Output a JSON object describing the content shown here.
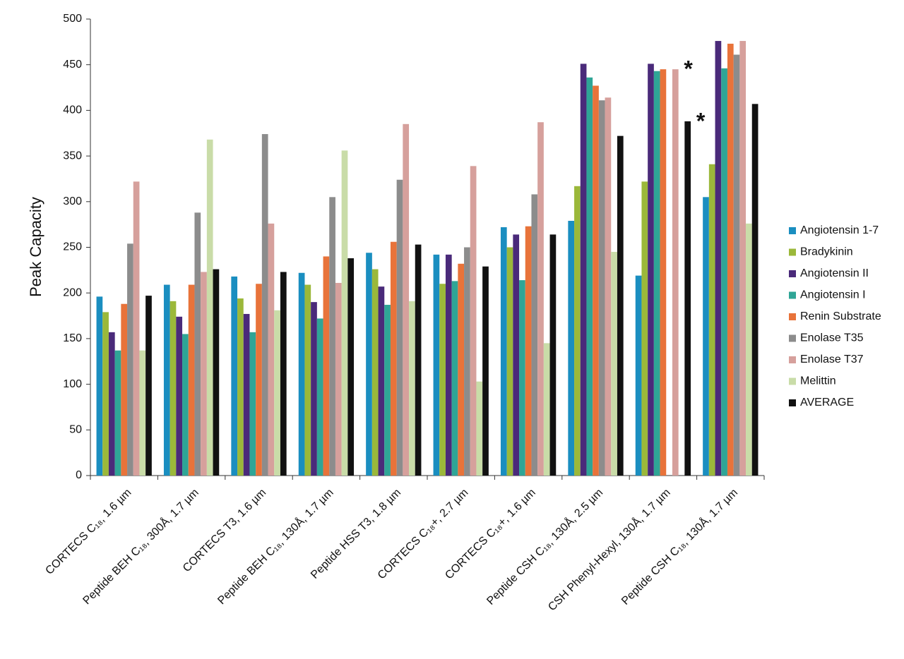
{
  "chart_data": {
    "type": "bar",
    "y_label": "Peak Capacity",
    "categories": [
      "CORTECS C₁₈, 1.6 µm",
      "Peptide BEH C₁₈, 300Å, 1.7 µm",
      "CORTECS T3, 1.6 µm",
      "Peptide BEH C₁₈, 130Å, 1.7 µm",
      "Peptide HSS T3, 1.8 µm",
      "CORTECS C₁₈+, 2.7 µm",
      "CORTECS C₁₈+, 1.6 µm",
      "Peptide CSH C₁₈, 130Å, 2.5 µm",
      "CSH Phenyl-Hexyl, 130Å, 1.7 µm",
      "Peptide CSH C₁₈, 130Å, 1.7 µm"
    ],
    "series": [
      {
        "name": "Angiotensin 1-7",
        "color": "#1a8ec0",
        "values": [
          196,
          209,
          218,
          222,
          244,
          242,
          272,
          279,
          219,
          305
        ]
      },
      {
        "name": "Bradykinin",
        "color": "#9bb83a",
        "values": [
          179,
          191,
          194,
          209,
          226,
          210,
          250,
          317,
          322,
          341
        ]
      },
      {
        "name": "Angiotensin II",
        "color": "#4a2a7a",
        "values": [
          157,
          174,
          177,
          190,
          207,
          242,
          264,
          451,
          451,
          476
        ]
      },
      {
        "name": "Angiotensin I",
        "color": "#2fa596",
        "values": [
          137,
          155,
          157,
          172,
          187,
          213,
          214,
          436,
          443,
          446
        ]
      },
      {
        "name": "Renin Substrate",
        "color": "#e8733a",
        "values": [
          188,
          209,
          210,
          240,
          256,
          232,
          273,
          427,
          445,
          473
        ]
      },
      {
        "name": "Enolase T35",
        "color": "#8c8c8c",
        "values": [
          254,
          288,
          374,
          305,
          324,
          250,
          308,
          411,
          null,
          461
        ]
      },
      {
        "name": "Enolase T37",
        "color": "#d6a09c",
        "values": [
          322,
          223,
          276,
          211,
          385,
          339,
          387,
          414,
          445,
          476
        ]
      },
      {
        "name": "Melittin",
        "color": "#c9dca8",
        "values": [
          137,
          368,
          181,
          356,
          191,
          103,
          145,
          245,
          null,
          276
        ]
      },
      {
        "name": "AVERAGE",
        "color": "#111111",
        "values": [
          197,
          226,
          223,
          238,
          253,
          229,
          264,
          372,
          388,
          407
        ]
      }
    ],
    "annotations": [
      "*",
      "*"
    ],
    "annotation_color": "#7a1f4a",
    "ylim": [
      0,
      500
    ],
    "yticks": [
      0,
      50,
      100,
      150,
      200,
      250,
      300,
      350,
      400,
      450,
      500
    ],
    "legend": "right"
  }
}
